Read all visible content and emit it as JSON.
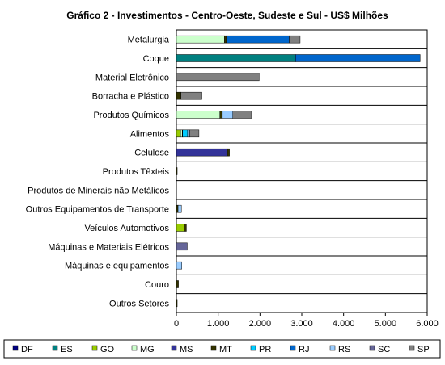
{
  "chart_data": {
    "type": "bar",
    "orientation": "horizontal",
    "stacked": true,
    "title": "Gráfico 2 - Investimentos - Centro-Oeste, Sudeste e Sul - US$ Milhões",
    "xlabel": "",
    "ylabel": "",
    "xlim": [
      0,
      6000
    ],
    "x_ticks": [
      0,
      1000,
      2000,
      3000,
      4000,
      5000,
      6000
    ],
    "x_tick_labels": [
      "0",
      "1.000",
      "2.000",
      "3.000",
      "4.000",
      "5.000",
      "6.000"
    ],
    "grid": false,
    "legend_position": "bottom",
    "categories": [
      "Metalurgia",
      "Coque",
      "Material Eletrônico",
      "Borracha e Plástico",
      "Produtos Químicos",
      "Alimentos",
      "Celulose",
      "Produtos Têxteis",
      "Produtos de Minerais não Metálicos",
      "Outros Equipamentos de Transporte",
      "Veículos Automotivos",
      "Máquinas e Materiais Elétricos",
      "Máquinas e equipamentos",
      "Couro",
      "Outros Setores"
    ],
    "series": [
      {
        "name": "DF",
        "color": "#000080",
        "values": [
          0,
          0,
          0,
          0,
          0,
          0,
          0,
          0,
          0,
          0,
          0,
          0,
          0,
          0,
          0
        ]
      },
      {
        "name": "ES",
        "color": "#008080",
        "values": [
          0,
          2850,
          0,
          0,
          0,
          0,
          0,
          0,
          0,
          0,
          0,
          0,
          0,
          0,
          0
        ]
      },
      {
        "name": "GO",
        "color": "#99CC00",
        "values": [
          0,
          0,
          0,
          0,
          0,
          100,
          0,
          0,
          0,
          0,
          190,
          0,
          0,
          0,
          0
        ]
      },
      {
        "name": "MG",
        "color": "#CCFFCC",
        "values": [
          1150,
          0,
          0,
          0,
          1040,
          40,
          0,
          0,
          0,
          0,
          0,
          0,
          0,
          0,
          0
        ]
      },
      {
        "name": "MS",
        "color": "#333399",
        "values": [
          0,
          0,
          0,
          0,
          0,
          0,
          1220,
          0,
          0,
          0,
          0,
          0,
          0,
          0,
          0
        ]
      },
      {
        "name": "MT",
        "color": "#333300",
        "values": [
          50,
          0,
          0,
          110,
          60,
          10,
          50,
          20,
          0,
          40,
          50,
          0,
          0,
          50,
          20
        ]
      },
      {
        "name": "PR",
        "color": "#00CCFF",
        "values": [
          0,
          0,
          0,
          0,
          0,
          120,
          0,
          0,
          0,
          0,
          0,
          0,
          0,
          0,
          0
        ]
      },
      {
        "name": "RJ",
        "color": "#0066CC",
        "values": [
          1500,
          2980,
          0,
          0,
          0,
          0,
          0,
          0,
          0,
          0,
          0,
          0,
          0,
          0,
          0
        ]
      },
      {
        "name": "RS",
        "color": "#99CCFF",
        "values": [
          0,
          0,
          0,
          0,
          250,
          50,
          0,
          0,
          0,
          80,
          0,
          0,
          130,
          0,
          0
        ]
      },
      {
        "name": "SC",
        "color": "#666699",
        "values": [
          0,
          0,
          0,
          0,
          0,
          0,
          0,
          0,
          0,
          0,
          0,
          260,
          0,
          0,
          0
        ]
      },
      {
        "name": "SP",
        "color": "#808080",
        "values": [
          260,
          0,
          1980,
          500,
          450,
          220,
          0,
          0,
          0,
          0,
          0,
          0,
          0,
          0,
          0
        ]
      }
    ]
  }
}
